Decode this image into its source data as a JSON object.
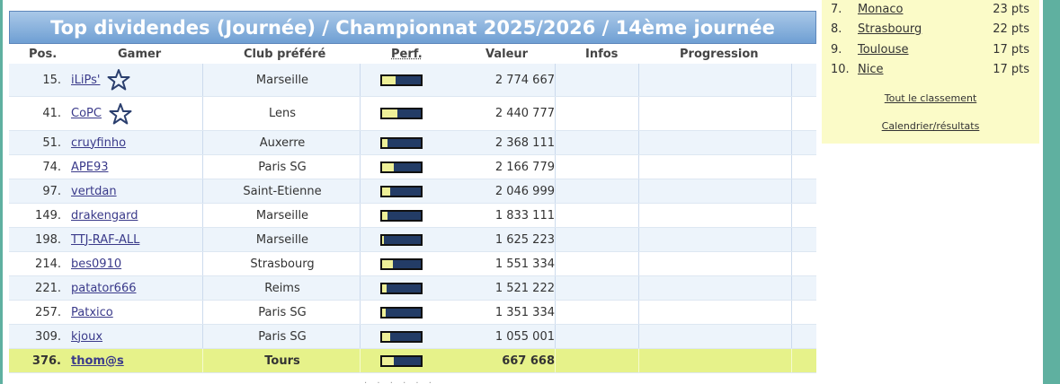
{
  "title": "Top dividendes (Journée) / Championnat 2025/2026 / 14ème journée",
  "headers": {
    "pos": "Pos.",
    "gamer": "Gamer",
    "club": "Club préféré",
    "perf": "Perf.",
    "value": "Valeur",
    "infos": "Infos",
    "progression": "Progression"
  },
  "rows": [
    {
      "pos": "15.",
      "gamer": "iLiPs'",
      "club": "Marseille",
      "perf": 0.35,
      "value": "2 774 667",
      "star": true
    },
    {
      "pos": "41.",
      "gamer": "CoPC",
      "club": "Lens",
      "perf": 0.4,
      "value": "2 440 777",
      "star": true
    },
    {
      "pos": "51.",
      "gamer": "cruyfinho",
      "club": "Auxerre",
      "perf": 0.15,
      "value": "2 368 111",
      "star": false
    },
    {
      "pos": "74.",
      "gamer": "APE93",
      "club": "Paris SG",
      "perf": 0.3,
      "value": "2 166 779",
      "star": false
    },
    {
      "pos": "97.",
      "gamer": "vertdan",
      "club": "Saint-Etienne",
      "perf": 0.22,
      "value": "2 046 999",
      "star": false
    },
    {
      "pos": "149.",
      "gamer": "drakengard",
      "club": "Marseille",
      "perf": 0.15,
      "value": "1 833 111",
      "star": false
    },
    {
      "pos": "198.",
      "gamer": "TTJ-RAF-ALL",
      "club": "Marseille",
      "perf": 0.04,
      "value": "1 625 223",
      "star": false
    },
    {
      "pos": "214.",
      "gamer": "bes0910",
      "club": "Strasbourg",
      "perf": 0.28,
      "value": "1 551 334",
      "star": false
    },
    {
      "pos": "221.",
      "gamer": "patator666",
      "club": "Reims",
      "perf": 0.12,
      "value": "1 521 222",
      "star": false
    },
    {
      "pos": "257.",
      "gamer": "Patxico",
      "club": "Paris SG",
      "perf": 0.1,
      "value": "1 351 334",
      "star": false
    },
    {
      "pos": "309.",
      "gamer": "kjoux",
      "club": "Paris SG",
      "perf": 0.2,
      "value": "1 055 001",
      "star": false
    },
    {
      "pos": "376.",
      "gamer": "thom@s",
      "club": "Tours",
      "perf": 0.3,
      "value": "667 668",
      "star": false,
      "me": true
    }
  ],
  "ranking": [
    {
      "num": "7.",
      "team": "Monaco",
      "pts": "23 pts"
    },
    {
      "num": "8.",
      "team": "Strasbourg",
      "pts": "22 pts"
    },
    {
      "num": "9.",
      "team": "Toulouse",
      "pts": "17 pts"
    },
    {
      "num": "10.",
      "team": "Nice",
      "pts": "17 pts"
    }
  ],
  "links": {
    "full_ranking": "Tout le classement",
    "calendar": "Calendrier/résultats"
  },
  "colors": {
    "title_bg": "#7aa6d6",
    "row_alt": "#edf4fb",
    "my_row": "#e6f28a",
    "perf_bar": "#233c66",
    "perf_fill": "#eef098",
    "side_panel": "#fbfbc8"
  }
}
